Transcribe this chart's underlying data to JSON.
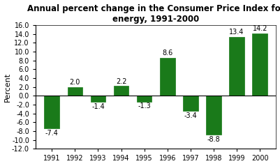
{
  "years": [
    1991,
    1992,
    1993,
    1994,
    1995,
    1996,
    1997,
    1998,
    1999,
    2000
  ],
  "values": [
    -7.4,
    2.0,
    -1.4,
    2.2,
    -1.3,
    8.6,
    -3.4,
    -8.8,
    13.4,
    14.2
  ],
  "bar_color": "#1a7a1a",
  "title_line1": "Annual percent change in the Consumer Price Index for",
  "title_line2": "energy, 1991-2000",
  "ylabel": "Percent",
  "ylim": [
    -12.0,
    16.0
  ],
  "yticks": [
    -12.0,
    -10.0,
    -8.0,
    -6.0,
    -4.0,
    -2.0,
    0.0,
    2.0,
    4.0,
    6.0,
    8.0,
    10.0,
    12.0,
    14.0,
    16.0
  ],
  "background_color": "#ffffff",
  "plot_background": "#ffffff",
  "title_fontsize": 8.5,
  "label_fontsize": 7.0,
  "tick_fontsize": 7.0,
  "ylabel_fontsize": 8.0
}
